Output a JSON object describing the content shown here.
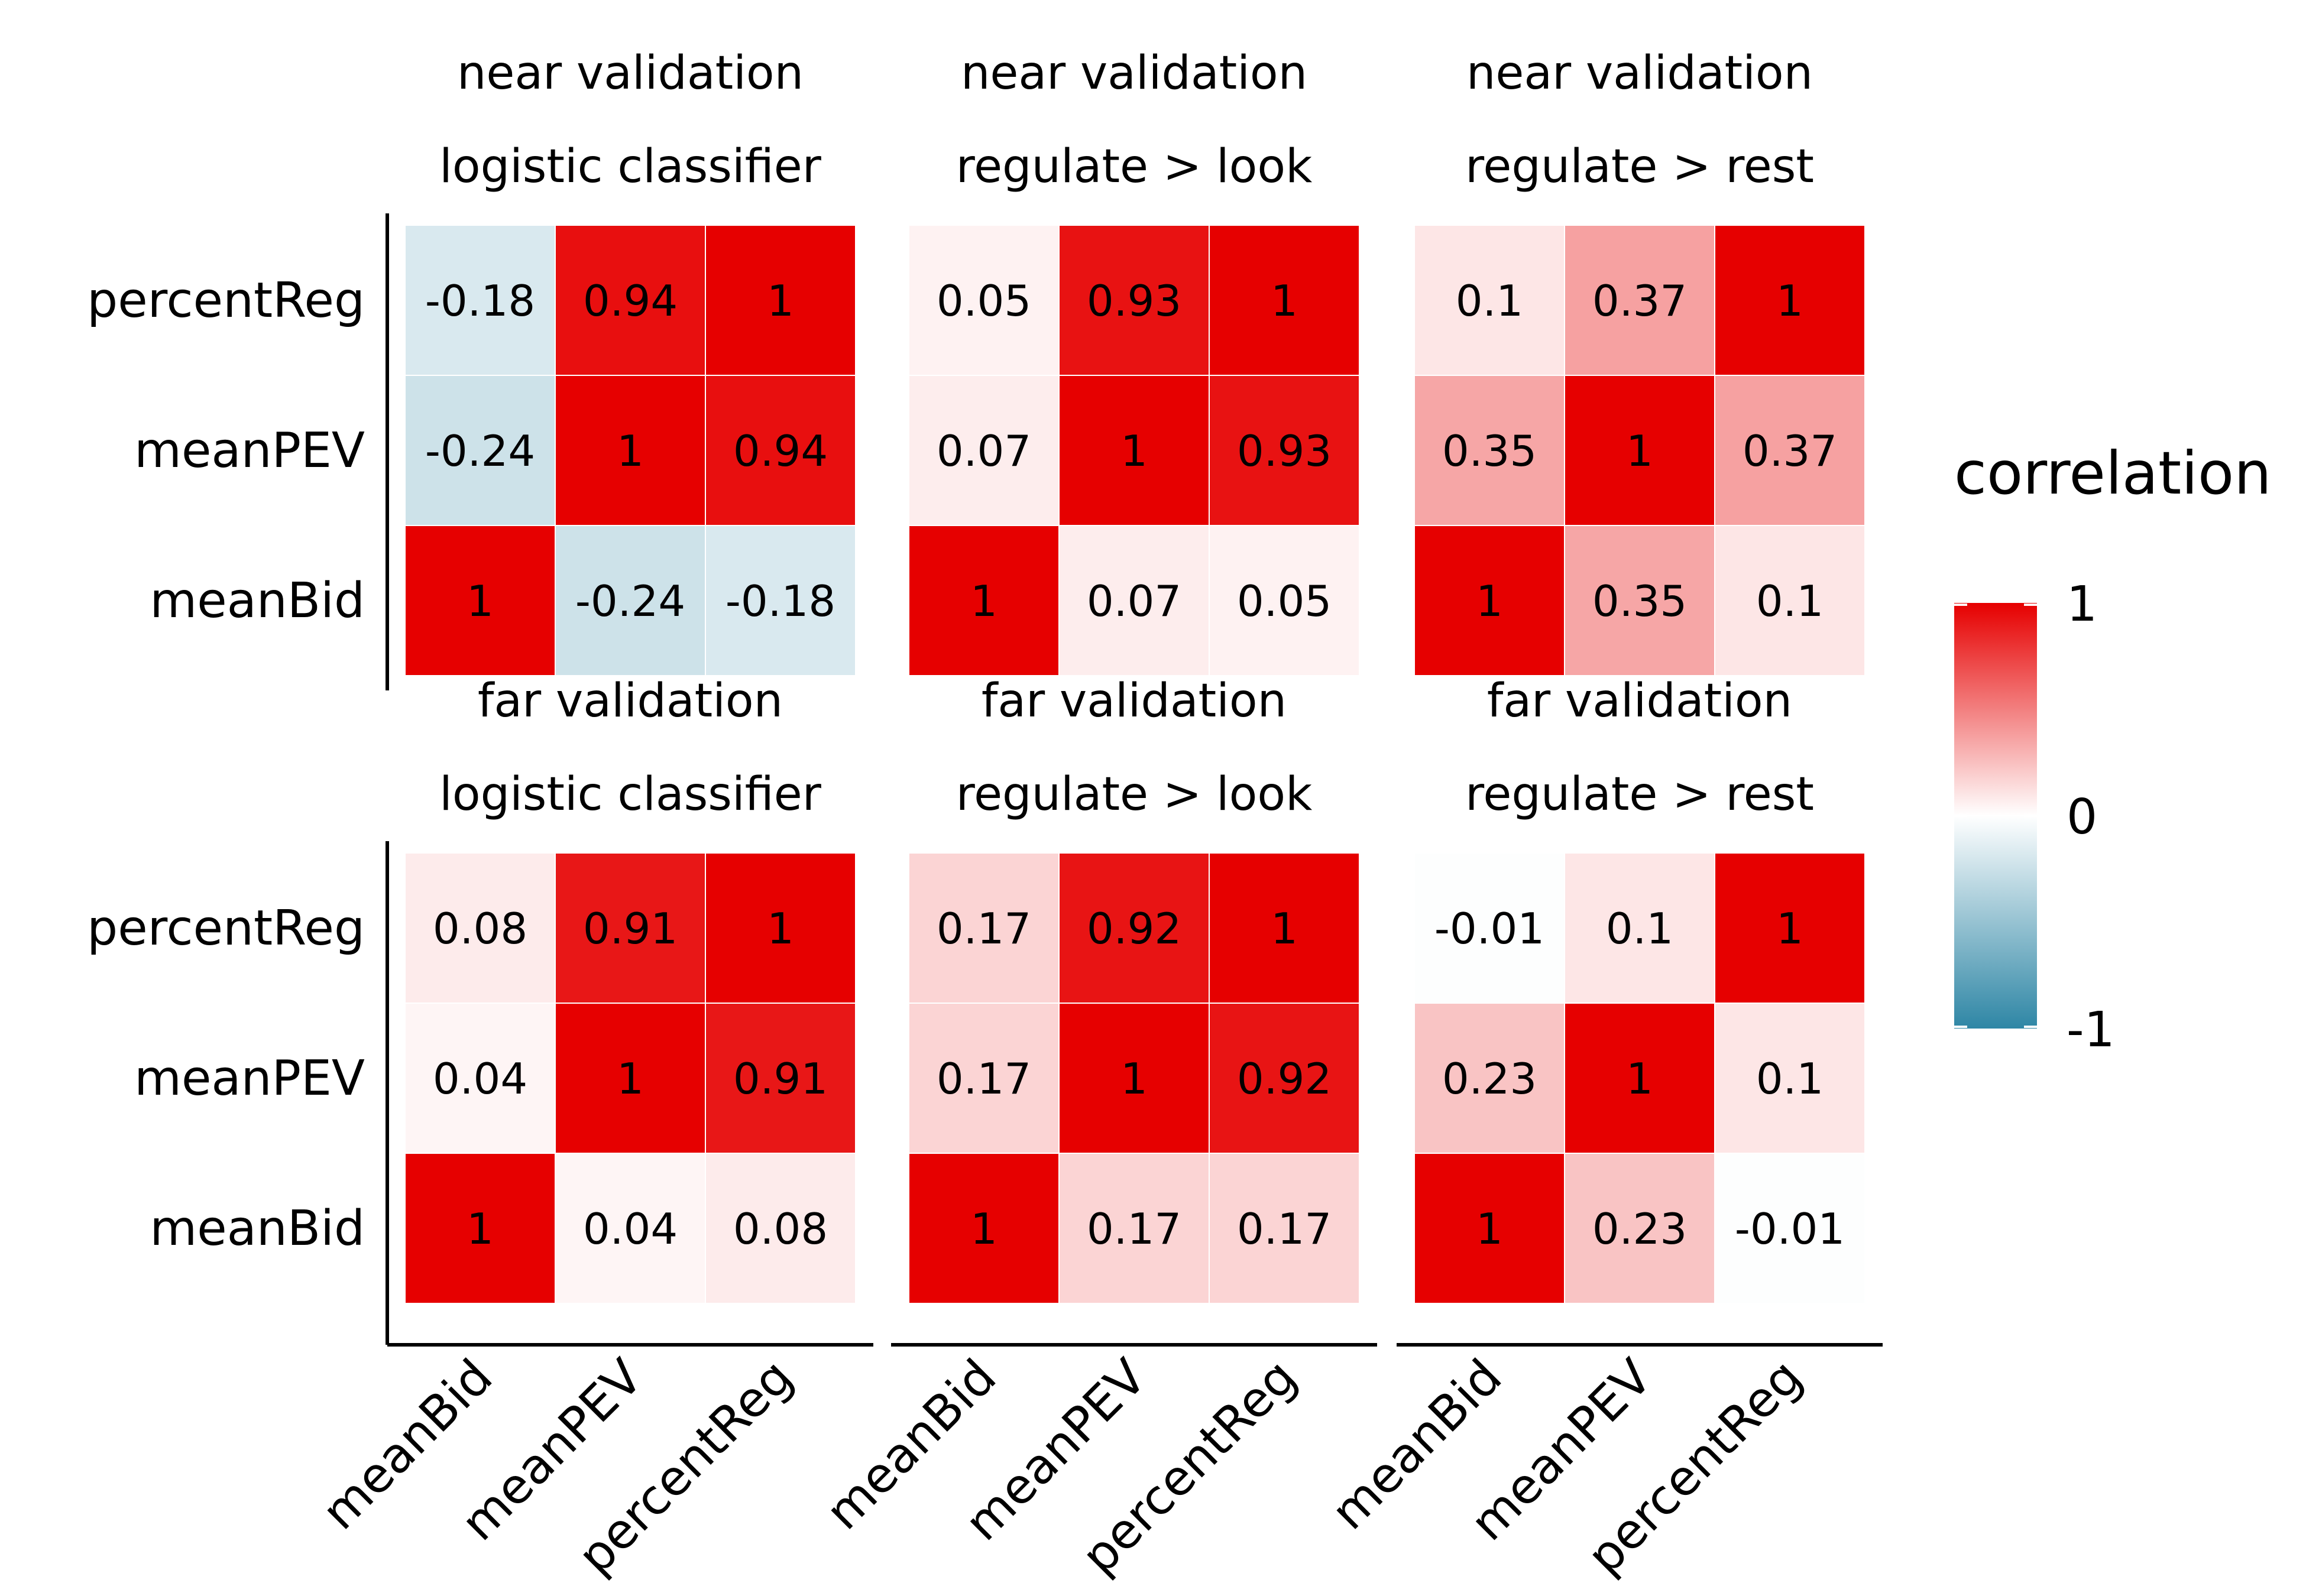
{
  "chart_data": {
    "type": "heatmap",
    "legend": {
      "title": "correlation",
      "ticks": [
        1,
        0,
        -1
      ],
      "tick_labels": [
        "1",
        "0",
        "-1"
      ],
      "range": [
        -1,
        1
      ],
      "placement": "right"
    },
    "colors": {
      "negative": "#2e86a5",
      "zero": "#ffffff",
      "positive": "#e60000"
    },
    "variables": [
      "meanBid",
      "meanPEV",
      "percentReg"
    ],
    "panels": [
      {
        "title_lines": [
          "near validation",
          "logistic classifier"
        ],
        "matrix": [
          [
            1,
            -0.24,
            -0.18
          ],
          [
            -0.24,
            1,
            0.94
          ],
          [
            -0.18,
            0.94,
            1
          ]
        ],
        "labels": [
          [
            "1",
            "-0.24",
            "-0.18"
          ],
          [
            "-0.24",
            "1",
            "0.94"
          ],
          [
            "-0.18",
            "0.94",
            "1"
          ]
        ]
      },
      {
        "title_lines": [
          "near validation",
          "regulate > look"
        ],
        "matrix": [
          [
            1,
            0.07,
            0.05
          ],
          [
            0.07,
            1,
            0.93
          ],
          [
            0.05,
            0.93,
            1
          ]
        ],
        "labels": [
          [
            "1",
            "0.07",
            "0.05"
          ],
          [
            "0.07",
            "1",
            "0.93"
          ],
          [
            "0.05",
            "0.93",
            "1"
          ]
        ]
      },
      {
        "title_lines": [
          "near validation",
          "regulate > rest"
        ],
        "matrix": [
          [
            1,
            0.35,
            0.1
          ],
          [
            0.35,
            1,
            0.37
          ],
          [
            0.1,
            0.37,
            1
          ]
        ],
        "labels": [
          [
            "1",
            "0.35",
            "0.1"
          ],
          [
            "0.35",
            "1",
            "0.37"
          ],
          [
            "0.1",
            "0.37",
            "1"
          ]
        ]
      },
      {
        "title_lines": [
          "far validation",
          "logistic classifier"
        ],
        "matrix": [
          [
            1,
            0.04,
            0.08
          ],
          [
            0.04,
            1,
            0.91
          ],
          [
            0.08,
            0.91,
            1
          ]
        ],
        "labels": [
          [
            "1",
            "0.04",
            "0.08"
          ],
          [
            "0.04",
            "1",
            "0.91"
          ],
          [
            "0.08",
            "0.91",
            "1"
          ]
        ]
      },
      {
        "title_lines": [
          "far validation",
          "regulate > look"
        ],
        "matrix": [
          [
            1,
            0.17,
            0.17
          ],
          [
            0.17,
            1,
            0.92
          ],
          [
            0.17,
            0.92,
            1
          ]
        ],
        "labels": [
          [
            "1",
            "0.17",
            "0.17"
          ],
          [
            "0.17",
            "1",
            "0.92"
          ],
          [
            "0.17",
            "0.92",
            "1"
          ]
        ]
      },
      {
        "title_lines": [
          "far validation",
          "regulate > rest"
        ],
        "matrix": [
          [
            1,
            0.23,
            -0.01
          ],
          [
            0.23,
            1,
            0.1
          ],
          [
            -0.01,
            0.1,
            1
          ]
        ],
        "labels": [
          [
            "1",
            "0.23",
            "-0.01"
          ],
          [
            "0.23",
            "1",
            "0.1"
          ],
          [
            "-0.01",
            "0.1",
            "1"
          ]
        ]
      }
    ]
  }
}
